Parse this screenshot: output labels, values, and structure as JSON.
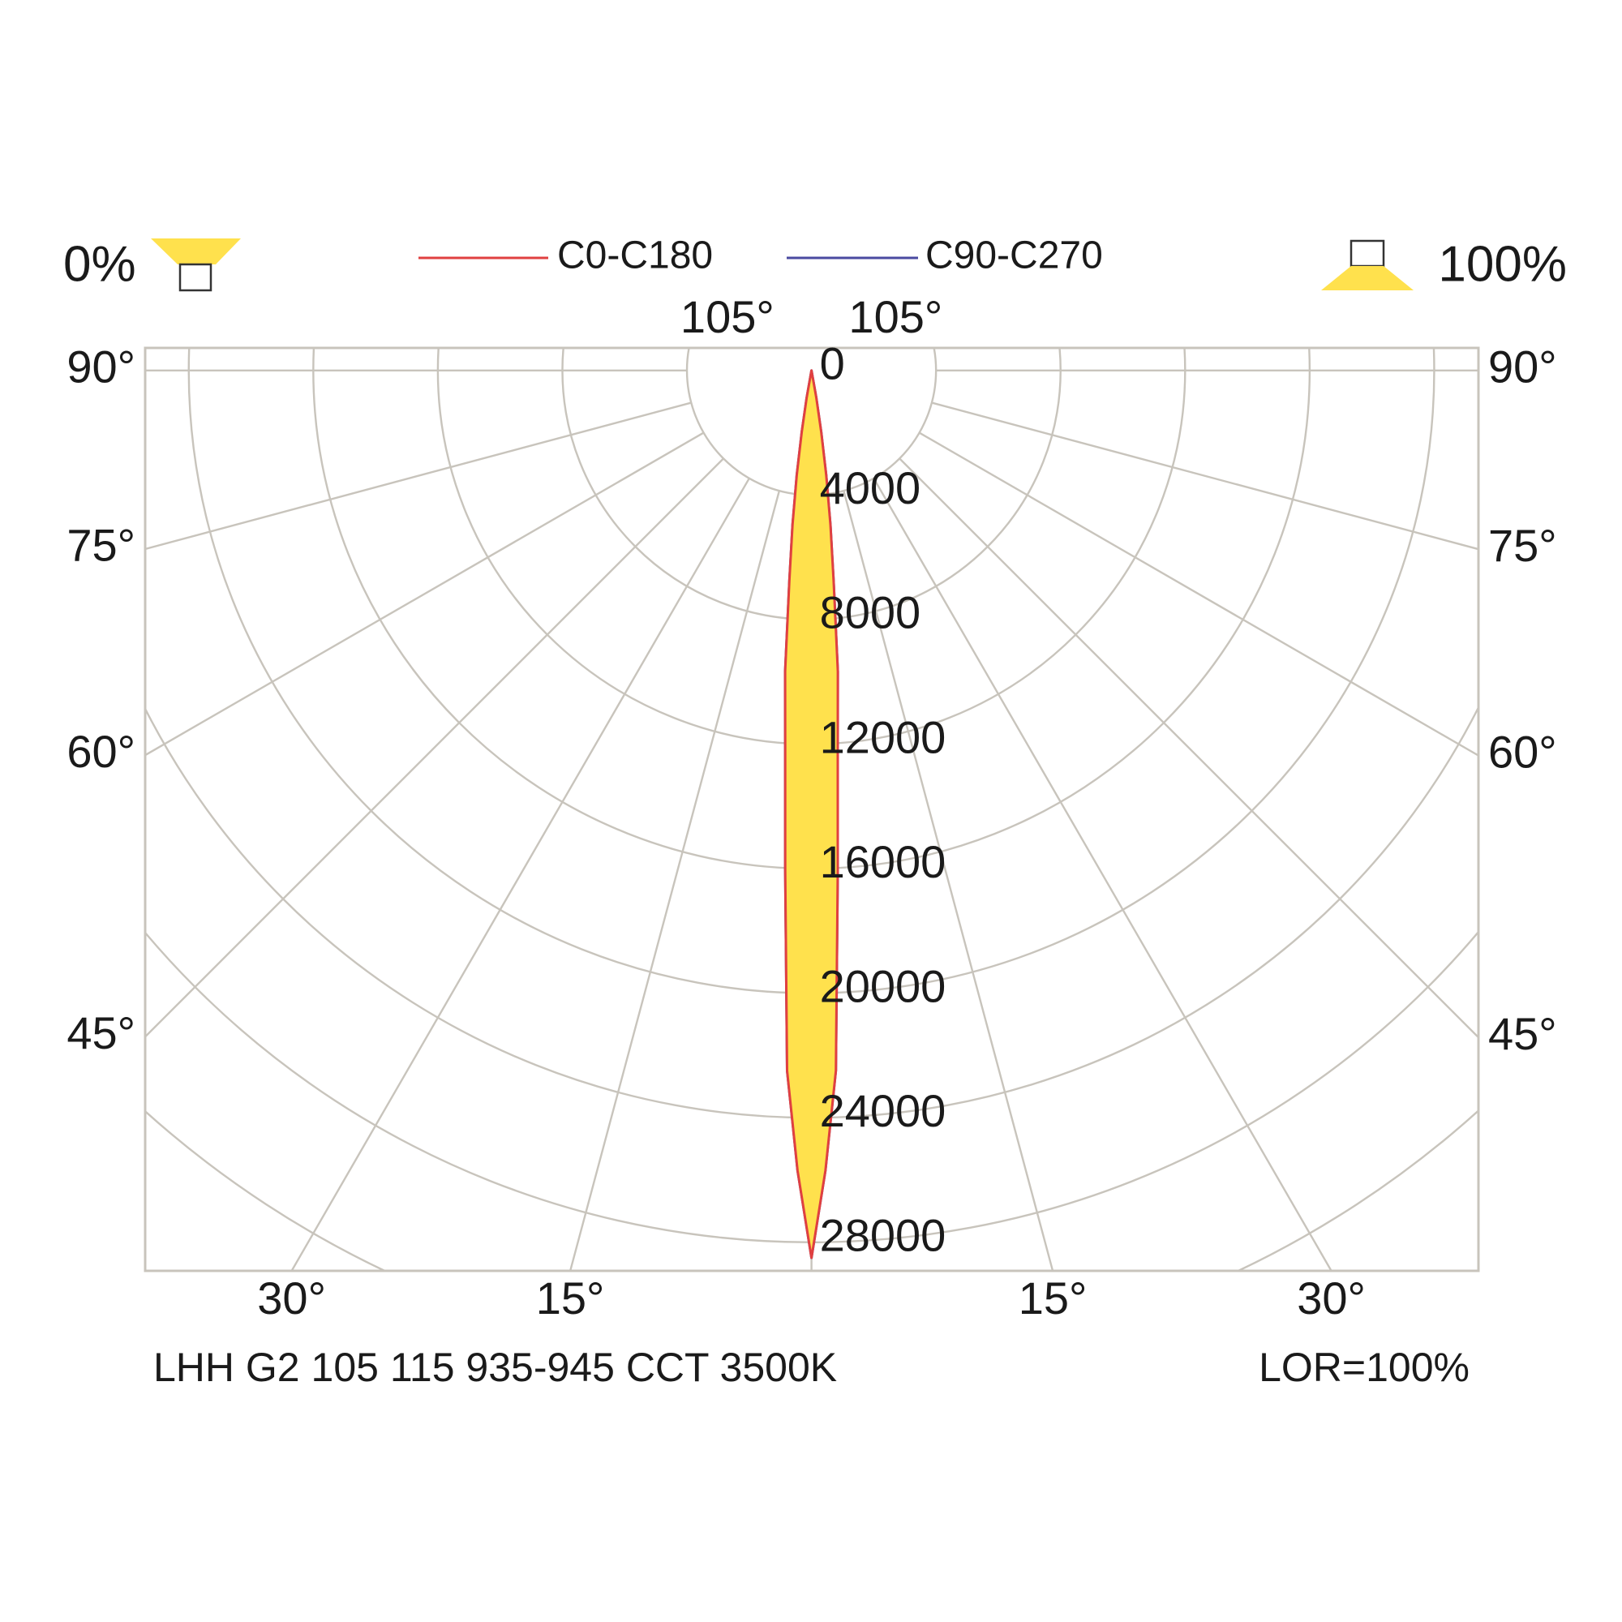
{
  "chart_data": {
    "type": "polar",
    "x": [
      -12,
      -10,
      -9,
      -8,
      -7,
      -6,
      -5,
      -4,
      -3,
      -2,
      -1,
      0,
      1,
      2,
      3,
      4,
      5,
      6,
      7,
      8,
      9,
      10,
      12
    ],
    "series": [
      {
        "name": "C90-C270",
        "color": "#4a4aa0",
        "values": [
          0,
          900,
          2000,
          3400,
          5000,
          6800,
          9700,
          12100,
          16100,
          22500,
          25700,
          28500,
          25700,
          22500,
          16100,
          12100,
          9700,
          6800,
          5000,
          3400,
          2000,
          900,
          0
        ]
      },
      {
        "name": "C0-C180",
        "color": "#e04040",
        "values": [
          0,
          900,
          2000,
          3400,
          5000,
          6800,
          9700,
          12100,
          16100,
          22500,
          25700,
          28500,
          25700,
          22500,
          16100,
          12100,
          9700,
          6800,
          5000,
          3400,
          2000,
          900,
          0
        ]
      }
    ],
    "fill": "#ffe14d",
    "rlim": [
      0,
      28000
    ],
    "rticks": [
      0,
      4000,
      8000,
      12000,
      16000,
      20000,
      24000,
      28000
    ],
    "minor_rticks": [
      32000,
      36000,
      40000
    ],
    "angle_ticks": [
      {
        "value": 15,
        "label": "15°"
      },
      {
        "value": 30,
        "label": "30°"
      },
      {
        "value": 45,
        "label": "45°"
      },
      {
        "value": 60,
        "label": "60°"
      },
      {
        "value": 75,
        "label": "75°"
      },
      {
        "value": 90,
        "label": "90°"
      },
      {
        "value": 105,
        "label": "105°"
      }
    ],
    "grid": true,
    "left_label": "0%",
    "right_label": "100%",
    "footer_left": "LHH G2 105 115 935-945 CCT 3500K",
    "footer_right": "LOR=100%"
  }
}
